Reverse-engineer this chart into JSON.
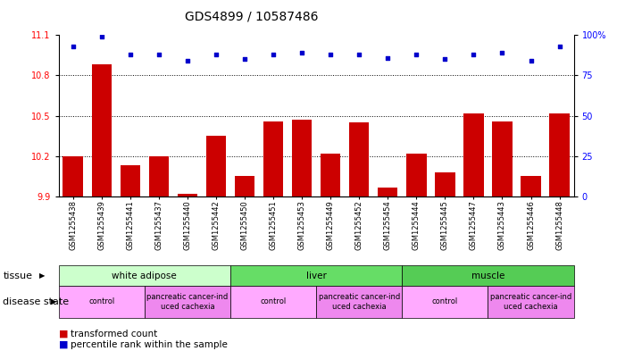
{
  "title": "GDS4899 / 10587486",
  "samples": [
    "GSM1255438",
    "GSM1255439",
    "GSM1255441",
    "GSM1255437",
    "GSM1255440",
    "GSM1255442",
    "GSM1255450",
    "GSM1255451",
    "GSM1255453",
    "GSM1255449",
    "GSM1255452",
    "GSM1255454",
    "GSM1255444",
    "GSM1255445",
    "GSM1255447",
    "GSM1255443",
    "GSM1255446",
    "GSM1255448"
  ],
  "red_values": [
    10.2,
    10.88,
    10.13,
    10.2,
    9.92,
    10.35,
    10.05,
    10.46,
    10.47,
    10.22,
    10.45,
    9.97,
    10.22,
    10.08,
    10.52,
    10.46,
    10.05,
    10.52
  ],
  "blue_values": [
    93,
    99,
    88,
    88,
    84,
    88,
    85,
    88,
    89,
    88,
    88,
    86,
    88,
    85,
    88,
    89,
    84,
    93
  ],
  "ylim_left": [
    9.9,
    11.1
  ],
  "ylim_right": [
    0,
    100
  ],
  "yticks_left": [
    9.9,
    10.2,
    10.5,
    10.8,
    11.1
  ],
  "yticks_right": [
    0,
    25,
    50,
    75,
    100
  ],
  "ytick_labels_right": [
    "0",
    "25",
    "50",
    "75",
    "100%"
  ],
  "bar_color": "#cc0000",
  "dot_color": "#0000cc",
  "background_color": "#ffffff",
  "tissue_groups": [
    {
      "label": "white adipose",
      "start": 0,
      "end": 6,
      "color_light": "#ccffcc",
      "color_dark": "#88ee88"
    },
    {
      "label": "liver",
      "start": 6,
      "end": 12,
      "color_light": "#88ee88",
      "color_dark": "#44cc44"
    },
    {
      "label": "muscle",
      "start": 12,
      "end": 18,
      "color_light": "#44cc44",
      "color_dark": "#22aa22"
    }
  ],
  "disease_groups": [
    {
      "label": "control",
      "start": 0,
      "end": 3,
      "color": "#ffaaff"
    },
    {
      "label": "pancreatic cancer-ind\nuced cachexia",
      "start": 3,
      "end": 6,
      "color": "#ee88ee"
    },
    {
      "label": "control",
      "start": 6,
      "end": 9,
      "color": "#ffaaff"
    },
    {
      "label": "pancreatic cancer-ind\nuced cachexia",
      "start": 9,
      "end": 12,
      "color": "#ee88ee"
    },
    {
      "label": "control",
      "start": 12,
      "end": 15,
      "color": "#ffaaff"
    },
    {
      "label": "pancreatic cancer-ind\nuced cachexia",
      "start": 15,
      "end": 18,
      "color": "#ee88ee"
    }
  ],
  "title_fontsize": 10,
  "tick_fontsize": 7,
  "xtick_fontsize": 6,
  "annotation_fontsize": 7.5,
  "label_fontsize": 8
}
